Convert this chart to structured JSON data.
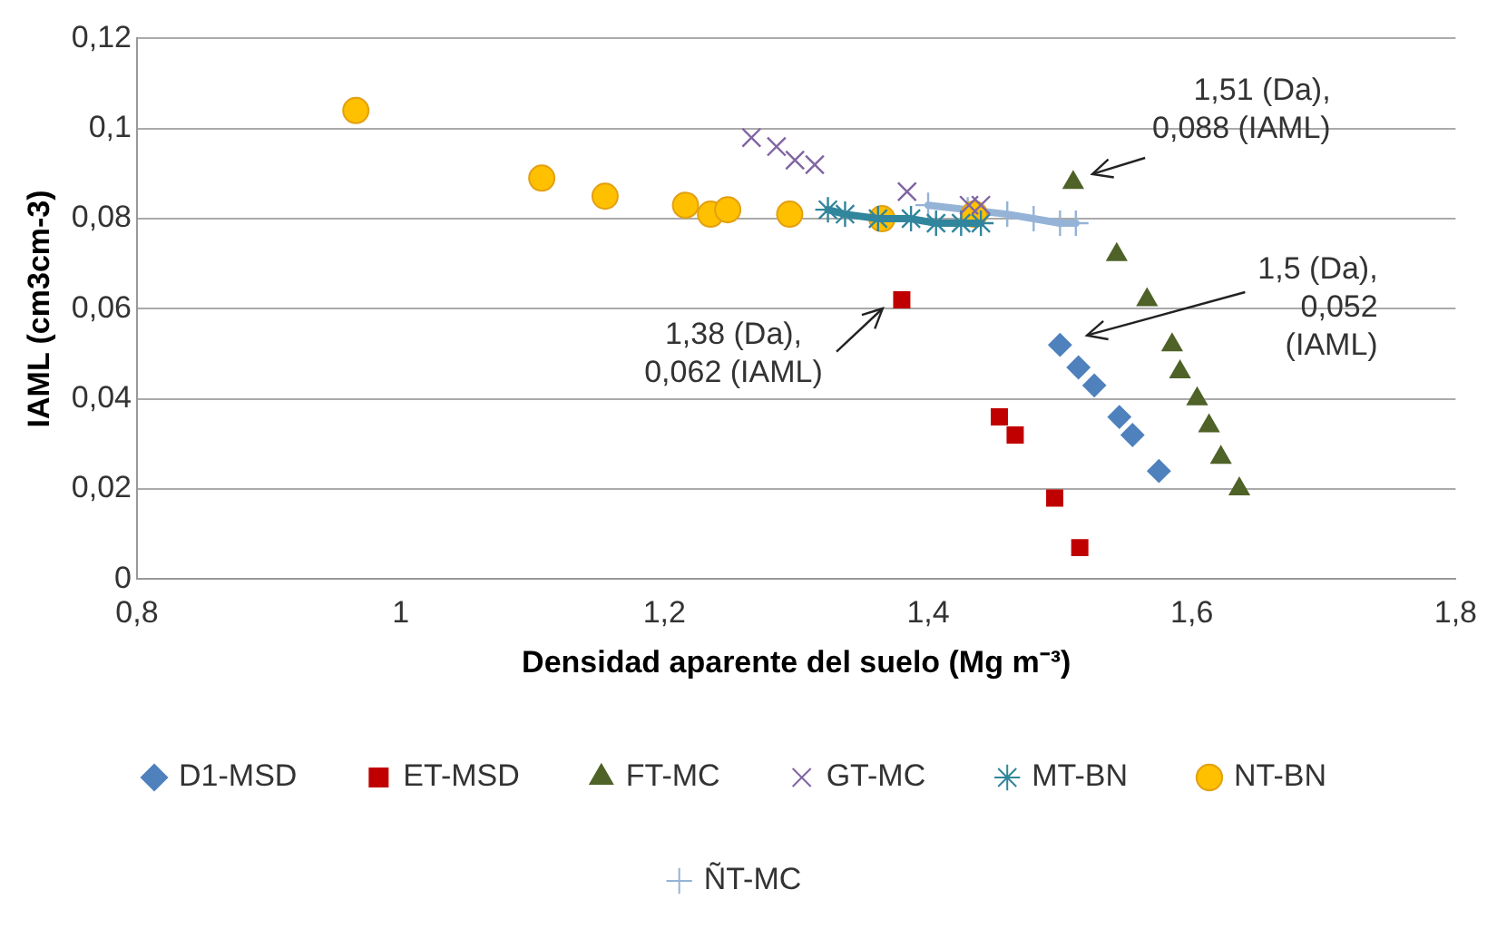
{
  "chart_data": {
    "type": "scatter",
    "xlabel": "Densidad aparente del suelo (Mg m⁻³)",
    "ylabel": "IAML (cm3cm-3)",
    "xlim": [
      0.8,
      1.8
    ],
    "xticks": [
      {
        "value": 0.8,
        "label": "0,8"
      },
      1,
      {
        "value": 1.2,
        "label": "1,2"
      },
      {
        "value": 1.4,
        "label": "1,4"
      },
      {
        "value": 1.6,
        "label": "1,6"
      },
      {
        "value": 1.8,
        "label": "1,8"
      }
    ],
    "ylim": [
      0,
      0.12
    ],
    "yticks": [
      0,
      {
        "value": 0.02,
        "label": "0,02"
      },
      {
        "value": 0.04,
        "label": "0,04"
      },
      {
        "value": 0.06,
        "label": "0,06"
      },
      {
        "value": 0.08,
        "label": "0,08"
      },
      {
        "value": 0.1,
        "label": "0,1"
      },
      {
        "value": 0.12,
        "label": "0,12"
      }
    ],
    "grid": "y",
    "legend": "bottom",
    "series": [
      {
        "name": "D1-MSD",
        "marker": "diamond",
        "color": "#4f81bd",
        "x": [
          1.5,
          1.514,
          1.526,
          1.545,
          1.555,
          1.575
        ],
        "values": [
          0.052,
          0.047,
          0.043,
          0.036,
          0.032,
          0.024
        ]
      },
      {
        "name": "ET-MSD",
        "marker": "square",
        "color": "#c00000",
        "x": [
          1.38,
          1.454,
          1.466,
          1.496,
          1.515
        ],
        "values": [
          0.062,
          0.036,
          0.032,
          0.018,
          0.007
        ]
      },
      {
        "name": "FT-MC",
        "marker": "triangle",
        "color": "#4f6228",
        "x": [
          1.51,
          1.543,
          1.566,
          1.585,
          1.591,
          1.604,
          1.613,
          1.622,
          1.636
        ],
        "values": [
          0.088,
          0.072,
          0.062,
          0.052,
          0.046,
          0.04,
          0.034,
          0.027,
          0.02
        ]
      },
      {
        "name": "GT-MC",
        "marker": "cross",
        "color": "#8064a2",
        "x": [
          1.266,
          1.285,
          1.299,
          1.314,
          1.384,
          1.431,
          1.44
        ],
        "values": [
          0.098,
          0.096,
          0.093,
          0.092,
          0.086,
          0.083,
          0.083
        ]
      },
      {
        "name": "MT-BN",
        "type": "line",
        "marker": "cross",
        "color": "#31859c",
        "x": [
          1.324,
          1.337,
          1.362,
          1.387,
          1.406,
          1.425,
          1.44
        ],
        "values": [
          0.082,
          0.081,
          0.08,
          0.08,
          0.079,
          0.079,
          0.079
        ]
      },
      {
        "name": "NT-BN",
        "marker": "circle",
        "color": "#ffc000",
        "x": [
          0.966,
          1.107,
          1.155,
          1.216,
          1.235,
          1.248,
          1.295,
          1.365,
          1.435
        ],
        "values": [
          0.104,
          0.089,
          0.085,
          0.083,
          0.081,
          0.082,
          0.081,
          0.08,
          0.081
        ]
      },
      {
        "name": "ÑT-MC",
        "type": "line",
        "marker": "cross",
        "color": "#95b3d7",
        "x": [
          1.4,
          1.43,
          1.46,
          1.48,
          1.5,
          1.512
        ],
        "values": [
          0.083,
          0.082,
          0.081,
          0.08,
          0.079,
          0.079
        ]
      }
    ],
    "annotations": [
      "1,51 (Da),\n0,088 (IAML)",
      "1,5 (Da),\n0,052\n(IAML)",
      "1,38 (Da),\n0,062 (IAML)"
    ]
  }
}
